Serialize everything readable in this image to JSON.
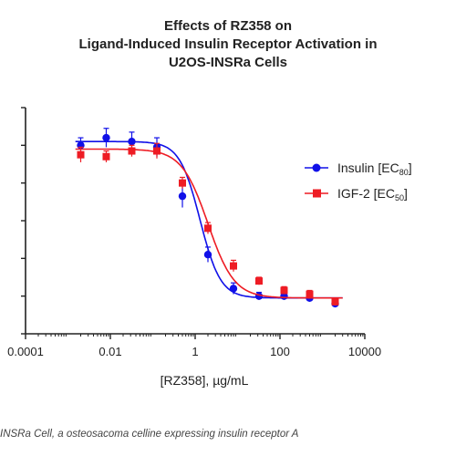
{
  "chart_data": {
    "type": "scatter",
    "title_lines": [
      "Effects of RZ358 on",
      "Ligand-Induced Insulin Receptor Activation in",
      "U2OS-INSRa Cells"
    ],
    "xlabel": "[RZ358], µg/mL",
    "ylabel": "",
    "x_scale": "log",
    "xlim": [
      0.0001,
      10000
    ],
    "x_ticks": [
      0.0001,
      0.01,
      1,
      100,
      10000
    ],
    "x_tick_labels": [
      "0.0001",
      "0.01",
      "1",
      "100",
      "10000"
    ],
    "ylim": [
      0,
      120
    ],
    "y_ticks": [
      0,
      20,
      40,
      60,
      80,
      100,
      120
    ],
    "grid": false,
    "legend_position": "right",
    "series": [
      {
        "name": "Insulin [EC80]",
        "legend_main": "Insulin [EC",
        "legend_sub": "80",
        "legend_close": "]",
        "color": "#1010e8",
        "marker": "circle",
        "x": [
          0.002,
          0.008,
          0.032,
          0.125,
          0.5,
          2,
          8,
          32,
          125,
          500,
          2000
        ],
        "y": [
          100,
          104,
          102,
          99,
          73,
          42,
          24,
          20,
          20,
          19,
          16
        ],
        "err": [
          4,
          5,
          5,
          5,
          6,
          4,
          3,
          2,
          2,
          2,
          2
        ],
        "fit": {
          "top": 102,
          "bottom": 19,
          "ec50": 1.3,
          "hill": 1.8
        }
      },
      {
        "name": "IGF-2 [EC50]",
        "legend_main": "IGF-2 [EC",
        "legend_sub": "50",
        "legend_close": "]",
        "color": "#ee1c24",
        "marker": "square",
        "x": [
          0.002,
          0.008,
          0.032,
          0.125,
          0.5,
          2,
          8,
          32,
          125,
          500,
          2000
        ],
        "y": [
          95,
          94,
          97,
          97,
          80,
          56,
          36,
          28,
          23,
          21,
          17
        ],
        "err": [
          4,
          3,
          3,
          4,
          3,
          3,
          3,
          2,
          2,
          2,
          2
        ],
        "fit": {
          "top": 98,
          "bottom": 19,
          "ec50": 2.0,
          "hill": 1.4
        }
      }
    ]
  },
  "caption": "INSRa Cell, a osteosacoma celline expressing insulin receptor A"
}
